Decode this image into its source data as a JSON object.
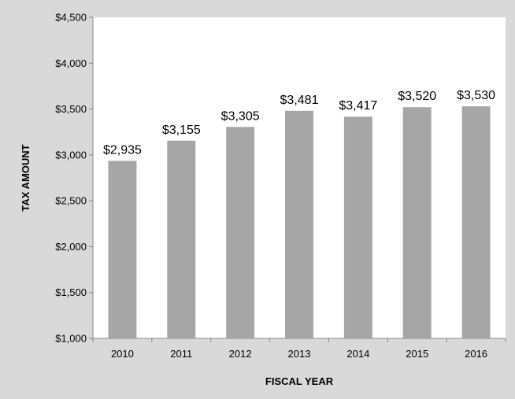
{
  "chart_data": {
    "type": "bar",
    "title": "",
    "xlabel": "FISCAL YEAR",
    "ylabel": "TAX AMOUNT",
    "categories": [
      "2010",
      "2011",
      "2012",
      "2013",
      "2014",
      "2015",
      "2016"
    ],
    "values": [
      2935,
      3155,
      3305,
      3481,
      3417,
      3520,
      3530
    ],
    "data_labels": [
      "$2,935",
      "$3,155",
      "$3,305",
      "$3,481",
      "$3,417",
      "$3,520",
      "$3,530"
    ],
    "ylim": [
      1000,
      4500
    ],
    "y_ticks": [
      1000,
      1500,
      2000,
      2500,
      3000,
      3500,
      4000,
      4500
    ],
    "y_tick_labels": [
      "$1,000",
      "$1,500",
      "$2,000",
      "$2,500",
      "$3,000",
      "$3,500",
      "$4,000",
      "$4,500"
    ],
    "grid": false,
    "legend": "none",
    "bar_color": "#a6a6a6",
    "plot_background": "#ffffff",
    "page_background": "#d9d9d9"
  }
}
